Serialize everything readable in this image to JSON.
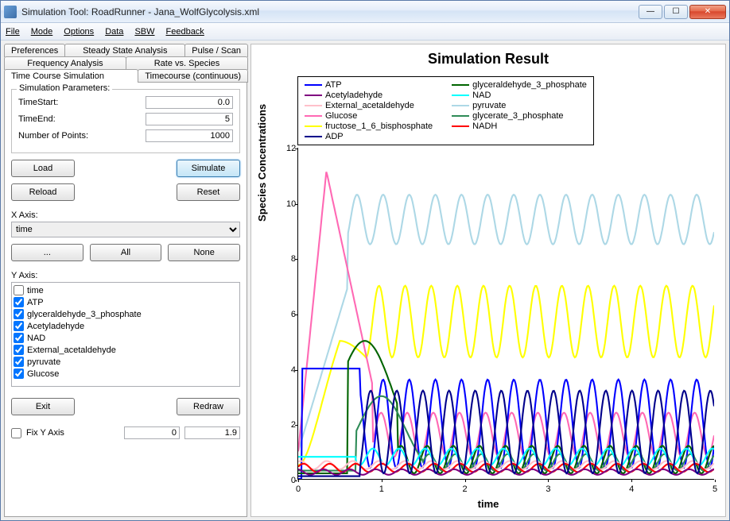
{
  "window": {
    "title": "Simulation Tool: RoadRunner - Jana_WolfGlycolysis.xml"
  },
  "menu": [
    "File",
    "Mode",
    "Options",
    "Data",
    "SBW",
    "Feedback"
  ],
  "tabs": {
    "row1": [
      "Preferences",
      "Steady State Analysis",
      "Pulse / Scan"
    ],
    "row2": [
      "Frequency Analysis",
      "Rate vs. Species"
    ],
    "row3": [
      "Time Course Simulation",
      "Timecourse (continuous)"
    ],
    "active": "Time Course Simulation"
  },
  "sim_params": {
    "legend": "Simulation Parameters:",
    "time_start_label": "TimeStart:",
    "time_start": "0.0",
    "time_end_label": "TimeEnd:",
    "time_end": "5",
    "num_points_label": "Number of Points:",
    "num_points": "1000"
  },
  "buttons": {
    "load": "Load",
    "simulate": "Simulate",
    "reload": "Reload",
    "reset": "Reset",
    "dots": "...",
    "all": "All",
    "none": "None",
    "exit": "Exit",
    "redraw": "Redraw"
  },
  "xaxis": {
    "label": "X Axis:",
    "value": "time"
  },
  "yaxis": {
    "label": "Y Axis:",
    "items": [
      {
        "label": "time",
        "checked": false
      },
      {
        "label": "ATP",
        "checked": true
      },
      {
        "label": "glyceraldehyde_3_phosphate",
        "checked": true
      },
      {
        "label": "Acetyladehyde",
        "checked": true
      },
      {
        "label": "NAD",
        "checked": true
      },
      {
        "label": "External_acetaldehyde",
        "checked": true
      },
      {
        "label": "pyruvate",
        "checked": true
      },
      {
        "label": "Glucose",
        "checked": true
      }
    ]
  },
  "fix": {
    "label": "Fix Y Axis",
    "min": "0",
    "max": "1.9"
  },
  "chart": {
    "title": "Simulation Result",
    "xlabel": "time",
    "ylabel": "Species Concentrations",
    "xlim": [
      0,
      5
    ],
    "xtick_step": 1,
    "ylim": [
      0,
      12
    ],
    "ytick_step": 2,
    "series": [
      {
        "name": "ATP",
        "color": "#0000ff"
      },
      {
        "name": "Acetyladehyde",
        "color": "#800080"
      },
      {
        "name": "External_acetaldehyde",
        "color": "#ffc0cb"
      },
      {
        "name": "Glucose",
        "color": "#ff69b4"
      },
      {
        "name": "fructose_1_6_bisphosphate",
        "color": "#ffff00"
      },
      {
        "name": "ADP",
        "color": "#00008b"
      },
      {
        "name": "glyceraldehyde_3_phosphate",
        "color": "#006400"
      },
      {
        "name": "NAD",
        "color": "#00ffff"
      },
      {
        "name": "pyruvate",
        "color": "#add8e6"
      },
      {
        "name": "glycerate_3_phosphate",
        "color": "#2e8b57"
      },
      {
        "name": "NADH",
        "color": "#ff0000"
      }
    ],
    "plot_background": "#ffffff",
    "line_width": 2
  }
}
